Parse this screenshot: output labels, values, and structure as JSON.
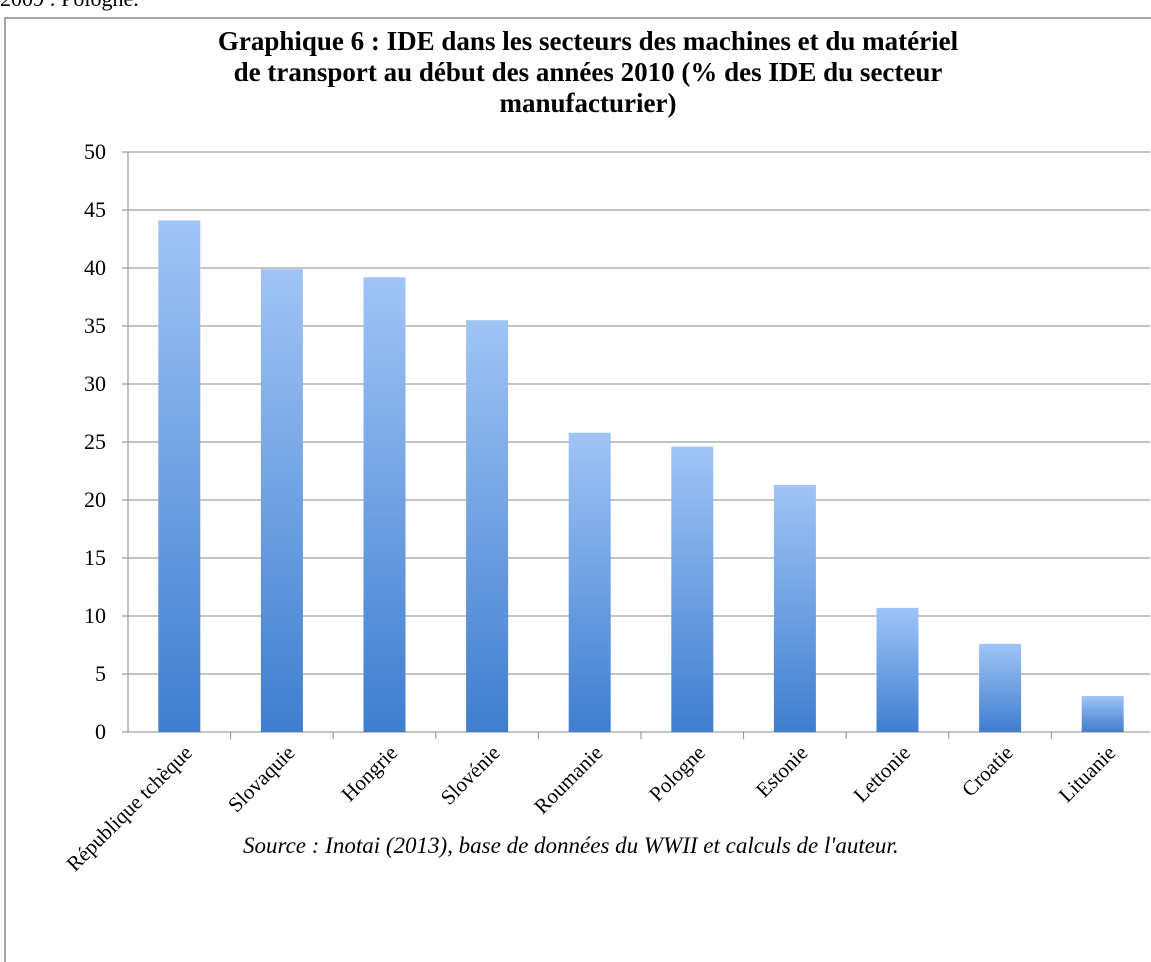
{
  "page_text": "2009 : Pologne.",
  "chart_data": {
    "type": "bar",
    "title": [
      "Graphique 6 : IDE dans les secteurs des machines et du matériel",
      "de transport au début des années 2010 (%  des IDE du secteur",
      "manufacturier)"
    ],
    "categories": [
      "République tchèque",
      "Slovaquie",
      "Hongrie",
      "Slovénie",
      "Roumanie",
      "Pologne",
      "Estonie",
      "Lettonie",
      "Croatie",
      "Lituanie"
    ],
    "values": [
      44.1,
      39.9,
      39.2,
      35.5,
      25.8,
      24.6,
      21.3,
      10.7,
      7.6,
      3.1
    ],
    "color": [
      "#a0c4f6",
      "#3f7ecf"
    ],
    "ylim": [
      0,
      50
    ],
    "yticks": [
      0,
      5,
      10,
      15,
      20,
      25,
      30,
      35,
      40,
      45,
      50
    ],
    "grid": true,
    "source": "Source : Inotai (2013), base de données du WWII et calculs de l'auteur."
  }
}
